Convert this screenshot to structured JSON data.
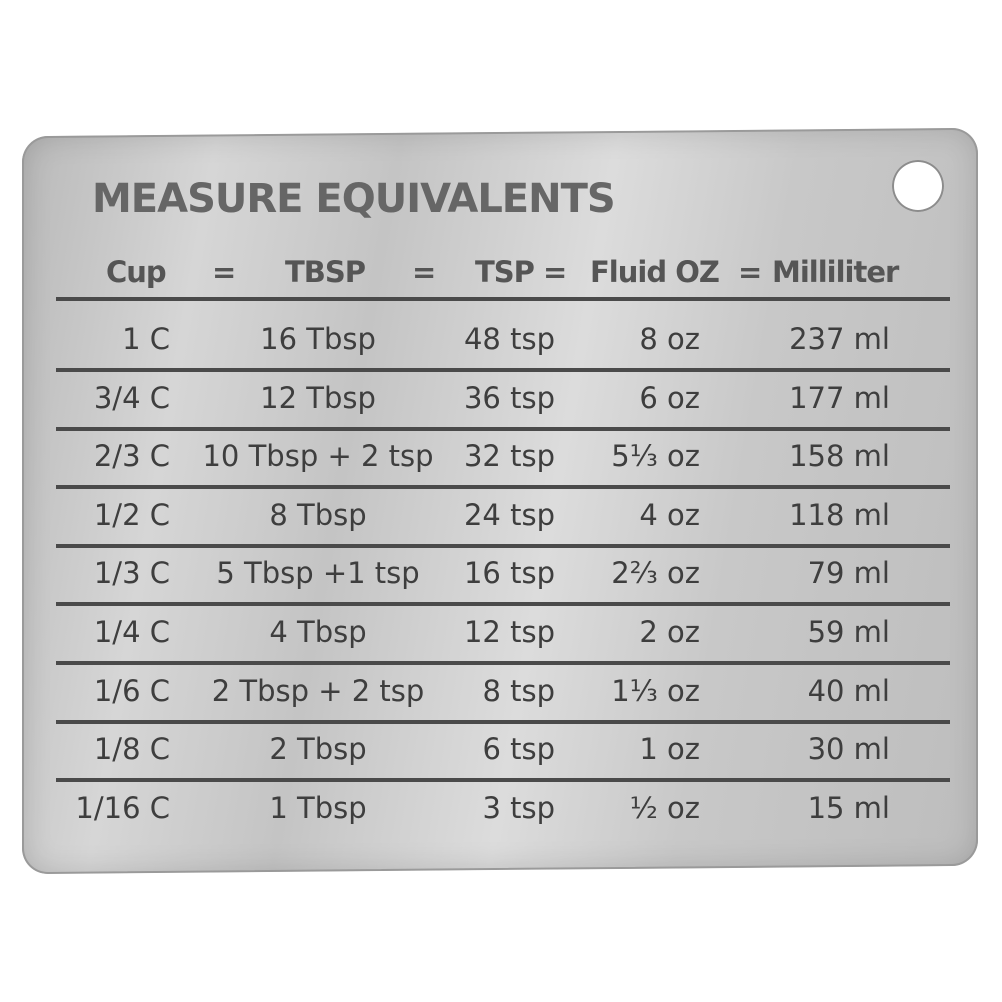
{
  "title": "MEASURE EQUIVALENTS",
  "headers": {
    "cup": "Cup",
    "eq1": "=",
    "tbsp": "TBSP",
    "eq2": "=",
    "tsp": "TSP =",
    "floz": "Fluid OZ",
    "eq3": "=",
    "ml": "Milliliter"
  },
  "rows": [
    {
      "cup": "1 C",
      "tbsp": "16 Tbsp",
      "tsp": "48 tsp",
      "oz": "8 oz",
      "ml": "237 ml"
    },
    {
      "cup": "3/4 C",
      "tbsp": "12 Tbsp",
      "tsp": "36 tsp",
      "oz": "6 oz",
      "ml": "177 ml"
    },
    {
      "cup": "2/3 C",
      "tbsp": "10 Tbsp + 2 tsp",
      "tsp": "32 tsp",
      "oz": "5⅓ oz",
      "ml": "158 ml"
    },
    {
      "cup": "1/2 C",
      "tbsp": "8 Tbsp",
      "tsp": "24 tsp",
      "oz": "4 oz",
      "ml": "118 ml"
    },
    {
      "cup": "1/3 C",
      "tbsp": "5 Tbsp +1 tsp",
      "tsp": "16 tsp",
      "oz": "2⅔ oz",
      "ml": "79 ml"
    },
    {
      "cup": "1/4 C",
      "tbsp": "4 Tbsp",
      "tsp": "12 tsp",
      "oz": "2 oz",
      "ml": "59 ml"
    },
    {
      "cup": "1/6 C",
      "tbsp": "2 Tbsp + 2 tsp",
      "tsp": "8 tsp",
      "oz": "1⅓ oz",
      "ml": "40 ml"
    },
    {
      "cup": "1/8 C",
      "tbsp": "2 Tbsp",
      "tsp": "6 tsp",
      "oz": "1 oz",
      "ml": "30 ml"
    },
    {
      "cup": "1/16 C",
      "tbsp": "1 Tbsp",
      "tsp": "3 tsp",
      "oz": "½ oz",
      "ml": "15 ml"
    }
  ]
}
